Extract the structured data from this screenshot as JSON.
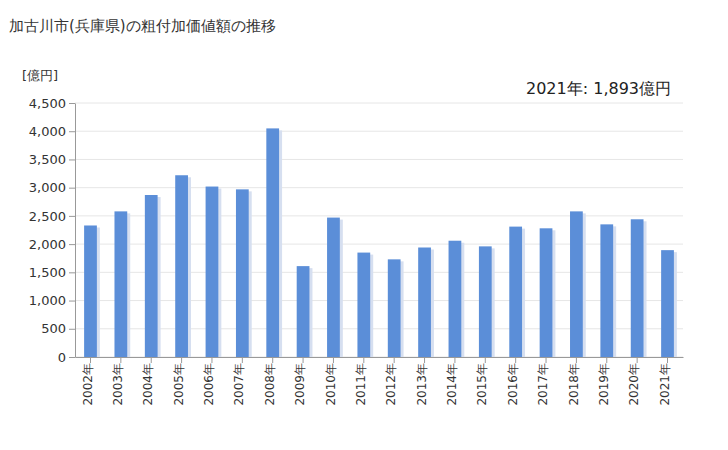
{
  "chart_data": {
    "type": "bar",
    "title": "加古川市(兵庫県)の粗付加価値額の推移",
    "y_label": "[億円]",
    "annotation": "2021年: 1,893億円",
    "categories": [
      "2002年",
      "2003年",
      "2004年",
      "2005年",
      "2006年",
      "2007年",
      "2008年",
      "2009年",
      "2010年",
      "2011年",
      "2012年",
      "2013年",
      "2014年",
      "2015年",
      "2016年",
      "2017年",
      "2018年",
      "2019年",
      "2020年",
      "2021年"
    ],
    "values": [
      2330,
      2580,
      2870,
      3220,
      3020,
      2970,
      4050,
      1610,
      2470,
      1850,
      1730,
      1940,
      2060,
      1960,
      2310,
      2280,
      2580,
      2350,
      2440,
      1893
    ],
    "color": "#5b8ed8",
    "ylim": [
      0,
      4500
    ],
    "yticks": [
      0,
      500,
      {
        "value": 1000,
        "label": "1,000"
      },
      {
        "value": 1500,
        "label": "1,500"
      },
      {
        "value": 2000,
        "label": "2,000"
      },
      {
        "value": 2500,
        "label": "2,500"
      },
      {
        "value": 3000,
        "label": "3,000"
      },
      {
        "value": 3500,
        "label": "3,500"
      },
      {
        "value": 4000,
        "label": "4,000"
      },
      {
        "value": 4500,
        "label": "4,500"
      }
    ],
    "grid": true
  }
}
